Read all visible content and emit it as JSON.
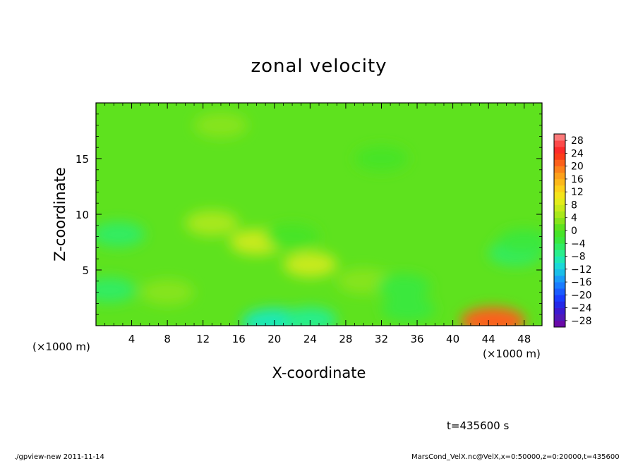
{
  "chart_data": {
    "type": "heatmap",
    "title": "zonal velocity",
    "xlabel": "X-coordinate",
    "ylabel": "Z-coordinate",
    "x_unit_left": "(×1000 m)",
    "x_unit_right": "(×1000 m)",
    "xlim": [
      0,
      50
    ],
    "ylim": [
      0,
      20
    ],
    "x_ticks": [
      4,
      8,
      12,
      16,
      20,
      24,
      28,
      32,
      36,
      40,
      44,
      48
    ],
    "y_ticks": [
      5,
      10,
      15
    ],
    "colorbar": {
      "levels": [
        -30,
        -28,
        -26,
        -24,
        -22,
        -20,
        -18,
        -16,
        -14,
        -12,
        -10,
        -8,
        -6,
        -4,
        -2,
        0,
        2,
        4,
        6,
        8,
        10,
        12,
        14,
        16,
        18,
        20,
        22,
        24,
        26,
        28,
        30
      ],
      "labels": [
        "28",
        "24",
        "20",
        "16",
        "12",
        "8",
        "4",
        "0",
        "−4",
        "−8",
        "−12",
        "−16",
        "−20",
        "−24",
        "−28"
      ],
      "label_values": [
        28,
        24,
        20,
        16,
        12,
        8,
        4,
        0,
        -4,
        -8,
        -12,
        -16,
        -20,
        -24,
        -28
      ],
      "colors": [
        "#6a0aa8",
        "#5218b8",
        "#3c1ad0",
        "#2428e8",
        "#1a3cff",
        "#1a5cff",
        "#1a7cff",
        "#1a9cf8",
        "#1abee8",
        "#1ad8d8",
        "#1ee8b4",
        "#28ee8c",
        "#30ec62",
        "#3ae83e",
        "#46e428",
        "#5ee21e",
        "#86e41a",
        "#a8e81a",
        "#c8ea1a",
        "#e4ec1a",
        "#f4e41a",
        "#fcd01a",
        "#fcb81a",
        "#fca01a",
        "#fc821a",
        "#fc601a",
        "#fc3c1a",
        "#fc2a2a",
        "#fc4a4a",
        "#fc7a7a"
      ]
    },
    "features": [
      {
        "x": 44.5,
        "z": 0.4,
        "value": 20
      },
      {
        "x": 1.5,
        "z": 3.2,
        "value": -6
      },
      {
        "x": 2.5,
        "z": 8.2,
        "value": -6
      },
      {
        "x": 20,
        "z": 0.3,
        "value": -10
      },
      {
        "x": 24,
        "z": 0.5,
        "value": -8
      },
      {
        "x": 13,
        "z": 9.2,
        "value": 5
      },
      {
        "x": 18,
        "z": 7.5,
        "value": 6
      },
      {
        "x": 24,
        "z": 5.5,
        "value": 7
      },
      {
        "x": 8,
        "z": 3,
        "value": 2
      },
      {
        "x": 30,
        "z": 4,
        "value": 2
      },
      {
        "x": 47,
        "z": 6.5,
        "value": -5
      },
      {
        "x": 48,
        "z": 7.5,
        "value": -4
      },
      {
        "x": 34.5,
        "z": 3.5,
        "value": -4
      },
      {
        "x": 35,
        "z": 1.5,
        "value": -3
      },
      {
        "x": 22,
        "z": 8,
        "value": -2
      },
      {
        "x": 14,
        "z": 18,
        "value": 2
      },
      {
        "x": 32,
        "z": 15,
        "value": -1
      }
    ]
  },
  "annotations": {
    "time": "t=435600 s",
    "footer_left": "./gpview-new   2011-11-14",
    "footer_right": "MarsCond_VelX.nc@VelX,x=0:50000,z=0:20000,t=435600"
  }
}
